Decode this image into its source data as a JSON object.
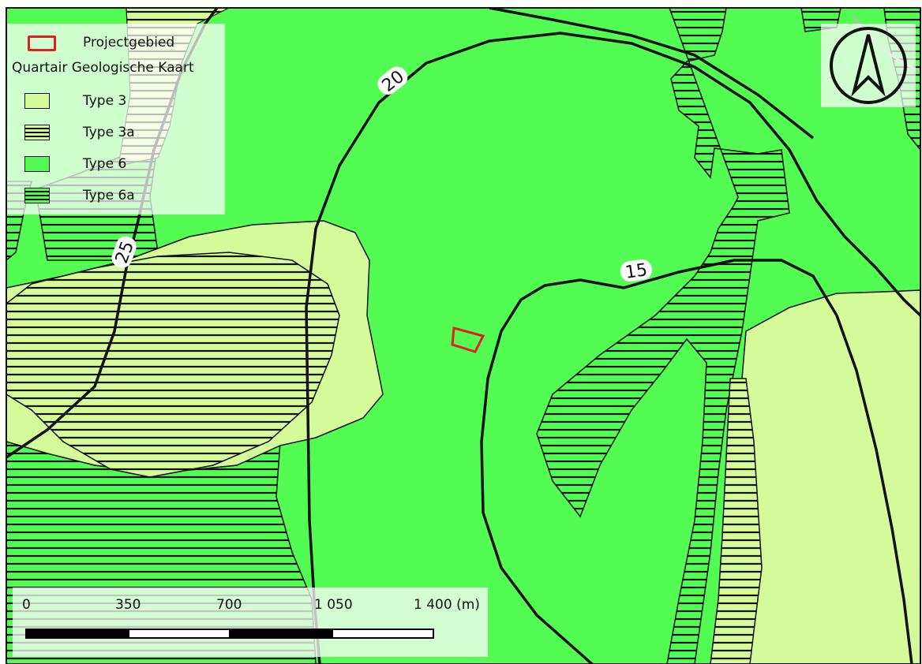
{
  "legend": {
    "project_label": "Projectgebied",
    "group_title": "Quartair Geologische Kaart",
    "items": [
      {
        "label": "Type 3",
        "color": "#d4fa9a",
        "hatched": false
      },
      {
        "label": "Type 3a",
        "color": "#d4fa9a",
        "hatched": true
      },
      {
        "label": "Type 6",
        "color": "#52fc52",
        "hatched": false
      },
      {
        "label": "Type 6a",
        "color": "#52fc52",
        "hatched": true
      }
    ],
    "project_color": "#e02020"
  },
  "contours": {
    "labels": [
      "20",
      "25",
      "15",
      "25"
    ]
  },
  "scalebar": {
    "ticks": [
      "0",
      "350",
      "700",
      "1 050",
      "1 400 (m)"
    ]
  },
  "north_arrow": {
    "icon": "north-arrow-icon"
  }
}
